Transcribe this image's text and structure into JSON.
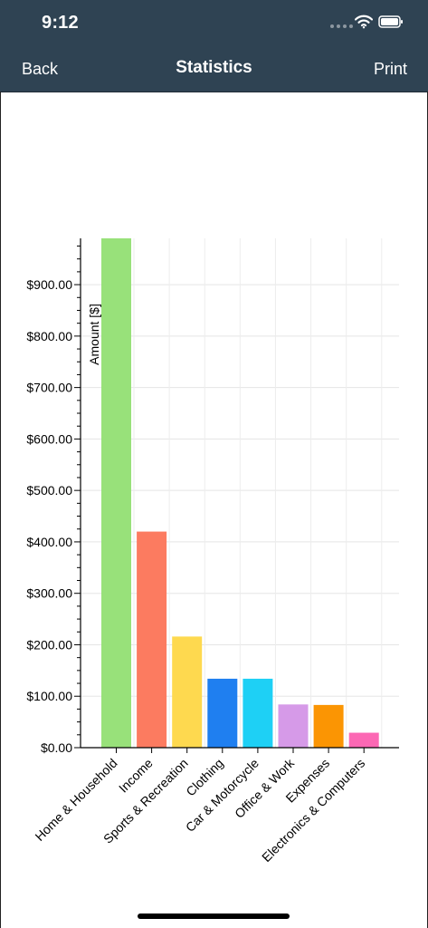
{
  "status": {
    "time": "9:12"
  },
  "nav": {
    "back_label": "Back",
    "title": "Statistics",
    "print_label": "Print"
  },
  "icons": {
    "wifi": "wifi-icon",
    "battery": "battery-icon",
    "signal": "signal-dots-icon"
  },
  "colors": {
    "header_bg": "#2f4353"
  },
  "chart_data": {
    "type": "bar",
    "ylabel": "Amount [$]",
    "ylim": [
      0,
      990
    ],
    "yticks": [
      "$0.00",
      "$100.00",
      "$200.00",
      "$300.00",
      "$400.00",
      "$500.00",
      "$600.00",
      "$700.00",
      "$800.00",
      "$900.00"
    ],
    "ytick_values": [
      0,
      100,
      200,
      300,
      400,
      500,
      600,
      700,
      800,
      900
    ],
    "grid": true,
    "categories": [
      "Home & Household",
      "Income",
      "Sports & Recreation",
      "Clothing",
      "Car & Motorcycle",
      "Office & Work",
      "Expenses",
      "Electronics & Computers"
    ],
    "values": [
      990,
      420,
      216,
      134,
      134,
      84,
      83,
      29
    ],
    "colors": [
      "#98e17a",
      "#fc7b60",
      "#fed94f",
      "#1f7ff0",
      "#1ed0f5",
      "#d69ae8",
      "#fb9503",
      "#fc68b4"
    ]
  }
}
